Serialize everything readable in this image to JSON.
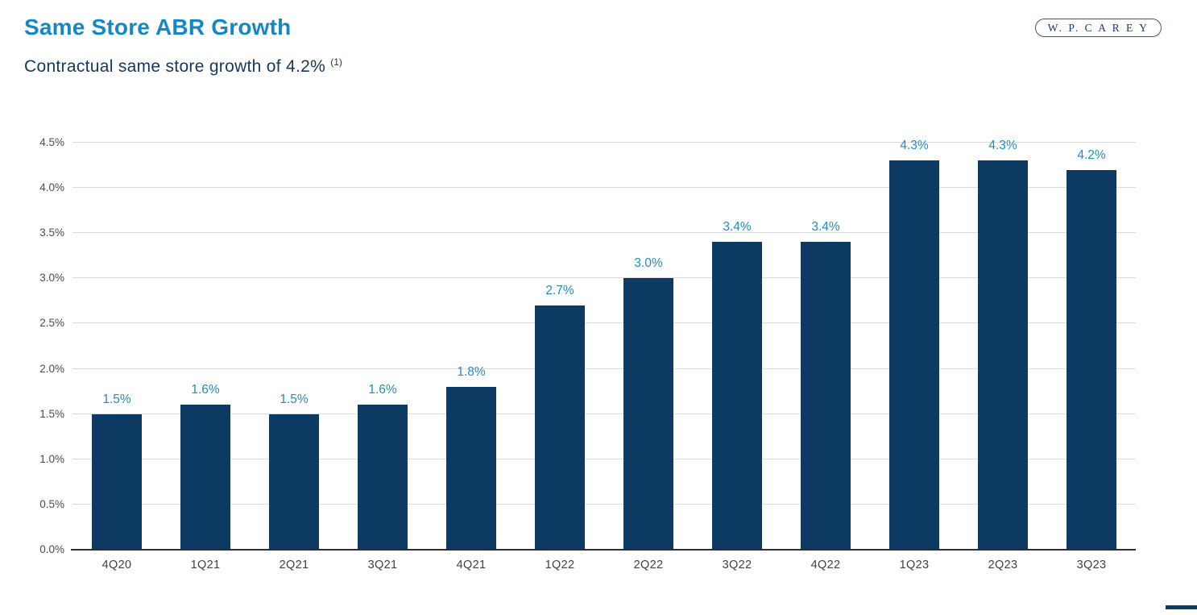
{
  "header": {
    "title": "Same Store ABR Growth",
    "subtitle": "Contractual same store growth of 4.2%",
    "footnote_marker": "(1)"
  },
  "logo": {
    "text": "W. P. C A R E Y"
  },
  "colors": {
    "title_blue": "#1687c5",
    "subtitle_navy": "#16365f",
    "bar_navy": "#0d3a63",
    "value_label_blue": "#1e8cca",
    "gridline_gray": "#dadada",
    "axis_dark": "#2e2e2e",
    "tick_gray": "#4c4c4c"
  },
  "chart_data": {
    "type": "bar",
    "title": "Same Store ABR Growth",
    "xlabel": "",
    "ylabel": "",
    "categories": [
      "4Q20",
      "1Q21",
      "2Q21",
      "3Q21",
      "4Q21",
      "1Q22",
      "2Q22",
      "3Q22",
      "4Q22",
      "1Q23",
      "2Q23",
      "3Q23"
    ],
    "values": [
      1.5,
      1.6,
      1.5,
      1.6,
      1.8,
      2.7,
      3.0,
      3.4,
      3.4,
      4.3,
      4.3,
      4.2
    ],
    "value_labels": [
      "1.5%",
      "1.6%",
      "1.5%",
      "1.6%",
      "1.8%",
      "2.7%",
      "3.0%",
      "3.4%",
      "3.4%",
      "4.3%",
      "4.3%",
      "4.2%"
    ],
    "ylim": [
      0,
      4.5
    ],
    "ytick_step": 0.5,
    "ytick_labels": [
      "0.0%",
      "0.5%",
      "1.0%",
      "1.5%",
      "2.0%",
      "2.5%",
      "3.0%",
      "3.5%",
      "4.0%",
      "4.5%"
    ],
    "grid": true,
    "legend": false,
    "bar_color": "#0d3a63",
    "value_label_color": "#1e8cca"
  }
}
